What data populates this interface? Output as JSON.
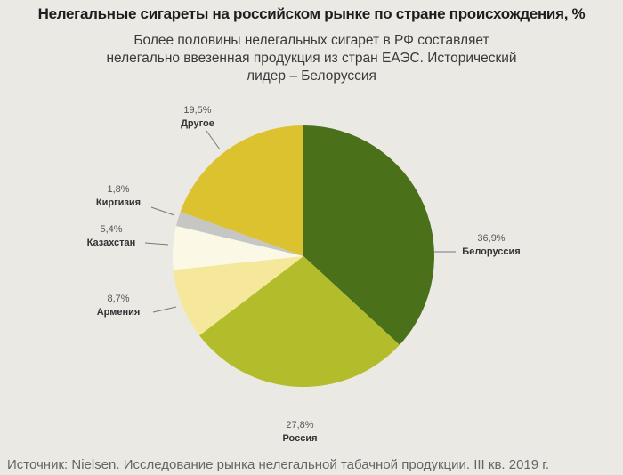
{
  "chart_data": {
    "type": "pie",
    "title": "Нелегальные сигареты на российском рынке по стране происхождения, %",
    "subtitle": "Более половины нелегальных сигарет в РФ составляет нелегально ввезенная продукция из стран ЕАЭС. Исторический лидер – Белоруссия",
    "slices": [
      {
        "name": "Белоруссия",
        "value": 36.9,
        "label": "36,9%",
        "color": "#4a7019"
      },
      {
        "name": "Россия",
        "value": 27.8,
        "label": "27,8%",
        "color": "#b3bd2c"
      },
      {
        "name": "Армения",
        "value": 8.7,
        "label": "8,7%",
        "color": "#f5e89a"
      },
      {
        "name": "Казахстан",
        "value": 5.4,
        "label": "5,4%",
        "color": "#fbf8e6"
      },
      {
        "name": "Киргизия",
        "value": 1.8,
        "label": "1,8%",
        "color": "#c6c6c4"
      },
      {
        "name": "Другое",
        "value": 19.5,
        "label": "19,5%",
        "color": "#dbc22e"
      }
    ],
    "start": "top",
    "direction": "clockwise"
  },
  "source": "Источник: Nielsen. Исследование рынка нелегальной табачной продукции. III кв. 2019 г."
}
